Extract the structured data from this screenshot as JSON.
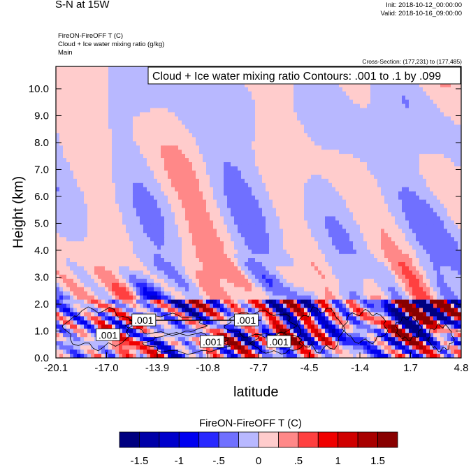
{
  "header": {
    "title": "S-N at 15W",
    "init": "Init: 2018-10-12_00:00:00",
    "valid": "Valid: 2018-10-16_09:00:00",
    "subtitles": [
      "FireON-FireOFF T   (C)",
      "Cloud + Ice water mixing ratio   (g/kg)",
      "Main"
    ],
    "cross_section": "Cross-Section: (177,231) to (177,485)"
  },
  "chart_data": {
    "type": "heatmap",
    "title": "Cloud + Ice water mixing ratio Contours: .001 to .1 by .099",
    "xlabel": "latitude",
    "ylabel": "Height (km)",
    "xlim": [
      -20.1,
      4.8
    ],
    "ylim": [
      0,
      10.83
    ],
    "xticks": [
      "-20.1",
      "-17.0",
      "-13.9",
      "-10.8",
      "-7.7",
      "-4.5",
      "-1.4",
      "1.7",
      "4.8"
    ],
    "yticks": [
      "0.0",
      "1.0",
      "2.0",
      "3.0",
      "4.0",
      "5.0",
      "6.0",
      "7.0",
      "8.0",
      "9.0",
      "10.0"
    ],
    "fill_variable": "FireON-FireOFF T  (C)",
    "levels": [
      -1.75,
      -1.5,
      -1.25,
      -1,
      -0.75,
      -0.5,
      -0.25,
      0,
      0.25,
      0.5,
      0.75,
      1,
      1.25,
      1.5,
      1.75
    ],
    "colors": [
      "#000080",
      "#0000a8",
      "#0000cc",
      "#0000f0",
      "#2828ff",
      "#7070ff",
      "#b8b8ff",
      "#ffcccc",
      "#ff8888",
      "#ff4040",
      "#f00000",
      "#d00000",
      "#a80000",
      "#880000"
    ],
    "contour_labels": [
      {
        "text": ".001",
        "lat": -16.9,
        "height": 0.85
      },
      {
        "text": ".001",
        "lat": -14.7,
        "height": 1.4
      },
      {
        "text": ".001",
        "lat": -10.5,
        "height": 0.6
      },
      {
        "text": ".001",
        "lat": -8.4,
        "height": 1.4
      },
      {
        "text": ".001",
        "lat": -6.4,
        "height": 0.6
      }
    ],
    "grid": false
  },
  "colorbar": {
    "title": "FireON-FireOFF T  (C)",
    "labels": [
      {
        "text": "-1.5",
        "value": -1.5
      },
      {
        "text": "-1",
        "value": -1
      },
      {
        "text": "-.5",
        "value": -0.5
      },
      {
        "text": "0",
        "value": 0
      },
      {
        "text": ".5",
        "value": 0.5
      },
      {
        "text": "1",
        "value": 1
      },
      {
        "text": "1.5",
        "value": 1.5
      }
    ]
  }
}
